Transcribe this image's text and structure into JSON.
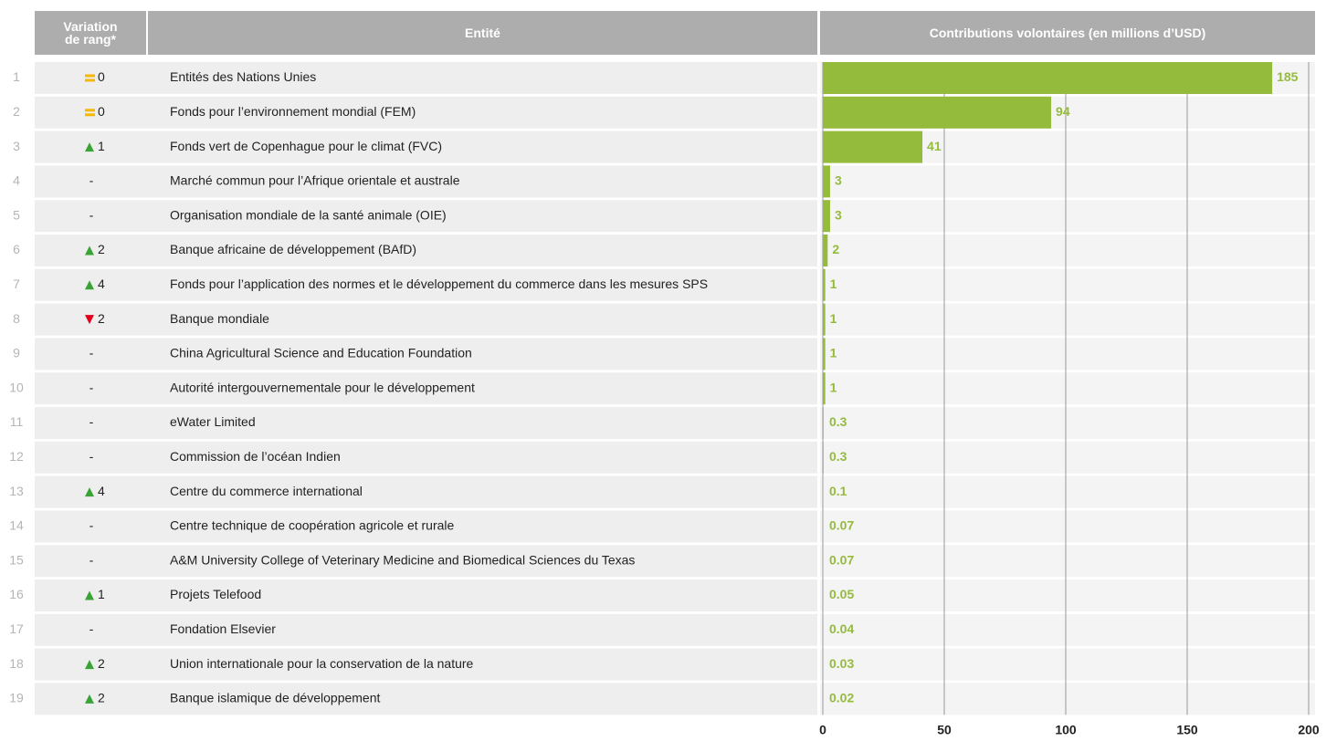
{
  "chart_data": {
    "type": "bar",
    "orientation": "horizontal",
    "columns": [
      "Variation de rang*",
      "Entité",
      "Contributions volontaires (en millions d’USD)"
    ],
    "ranks": [
      1,
      2,
      3,
      4,
      5,
      6,
      7,
      8,
      9,
      10,
      11,
      12,
      13,
      14,
      15,
      16,
      17,
      18,
      19
    ],
    "rank_change": [
      0,
      0,
      1,
      "-",
      "-",
      2,
      4,
      2,
      "-",
      "-",
      "-",
      "-",
      4,
      "-",
      "-",
      1,
      "-",
      2,
      2
    ],
    "rank_direction": [
      "same",
      "same",
      "up",
      null,
      null,
      "up",
      "up",
      "down",
      null,
      null,
      null,
      null,
      "up",
      null,
      null,
      "up",
      null,
      "up",
      "up"
    ],
    "categories": [
      "Entités des Nations Unies",
      "Fonds pour l’environnement mondial (FEM)",
      "Fonds vert de Copenhague pour le climat (FVC)",
      "Marché commun pour l’Afrique orientale et australe",
      "Organisation mondiale de la santé animale (OIE)",
      "Banque africaine de développement (BAfD)",
      "Fonds pour l’application des normes et le développement du commerce dans les mesures SPS",
      "Banque mondiale",
      "China Agricultural Science and Education Foundation",
      "Autorité intergouvernementale pour le développement",
      "eWater Limited",
      "Commission de l’océan Indien",
      "Centre du commerce international",
      "Centre technique de coopération agricole et rurale",
      "A&M University College of Veterinary Medicine and Biomedical Sciences du Texas",
      "Projets Telefood",
      "Fondation Elsevier",
      "Union internationale pour la conservation de la nature",
      "Banque islamique de développement"
    ],
    "values": [
      185,
      94,
      41,
      3,
      3,
      2,
      1,
      1,
      1,
      1,
      0.3,
      0.3,
      0.1,
      0.07,
      0.07,
      0.05,
      0.04,
      0.03,
      0.02
    ],
    "color": "#95bb3d",
    "xlim": [
      0,
      200
    ],
    "xticks": [
      0,
      50,
      100,
      150,
      200
    ],
    "grid": true
  }
}
